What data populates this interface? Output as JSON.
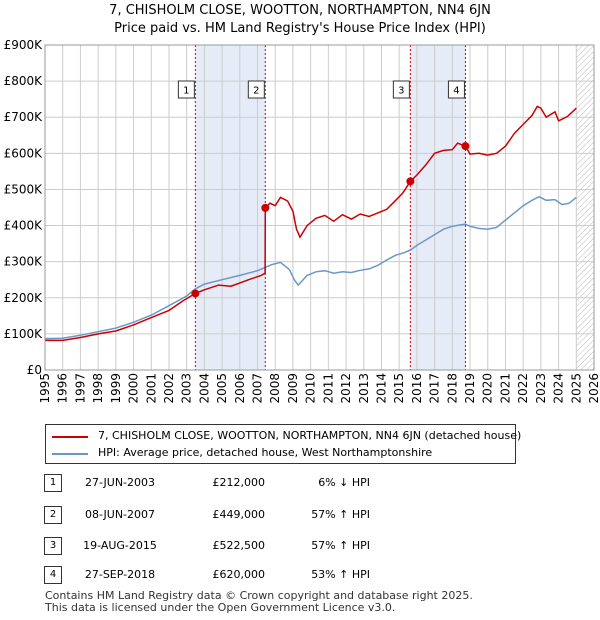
{
  "title_line1": "7, CHISHOLM CLOSE, WOOTTON, NORTHAMPTON, NN4 6JN",
  "title_line2": "Price paid vs. HM Land Registry's House Price Index (HPI)",
  "colors": {
    "property": "#cc0000",
    "hpi": "#6b97c8",
    "shade": "#e6ecf7",
    "grid": "#cccccc",
    "marker_line": "#cc0000"
  },
  "chart_data": {
    "type": "line",
    "x_range": [
      1995,
      2026
    ],
    "ylim": [
      0,
      900000
    ],
    "y_ticks": [
      {
        "value": 0,
        "label": "£0"
      },
      {
        "value": 100000,
        "label": "£100K"
      },
      {
        "value": 200000,
        "label": "£200K"
      },
      {
        "value": 300000,
        "label": "£300K"
      },
      {
        "value": 400000,
        "label": "£400K"
      },
      {
        "value": 500000,
        "label": "£500K"
      },
      {
        "value": 600000,
        "label": "£600K"
      },
      {
        "value": 700000,
        "label": "£700K"
      },
      {
        "value": 800000,
        "label": "£800K"
      },
      {
        "value": 900000,
        "label": "£900K"
      }
    ],
    "x_ticks": [
      "1995",
      "1996",
      "1997",
      "1998",
      "1999",
      "2000",
      "2001",
      "2002",
      "2003",
      "2004",
      "2005",
      "2006",
      "2007",
      "2008",
      "2009",
      "2010",
      "2011",
      "2012",
      "2013",
      "2014",
      "2015",
      "2016",
      "2017",
      "2018",
      "2019",
      "2020",
      "2021",
      "2022",
      "2023",
      "2024",
      "2025",
      "2026"
    ],
    "shaded_periods": [
      [
        2003.49,
        2007.44
      ],
      [
        2015.63,
        2018.74
      ]
    ],
    "future_hatch_from": 2025.0,
    "series": [
      {
        "name": "7, CHISHOLM CLOSE, WOOTTON, NORTHAMPTON, NN4 6JN (detached house)",
        "color": "#cc0000",
        "points": [
          [
            1995.0,
            82000
          ],
          [
            1996.0,
            82000
          ],
          [
            1997.0,
            90000
          ],
          [
            1998.0,
            100000
          ],
          [
            1999.0,
            108000
          ],
          [
            2000.0,
            125000
          ],
          [
            2001.0,
            145000
          ],
          [
            2002.0,
            165000
          ],
          [
            2002.8,
            192000
          ],
          [
            2003.49,
            212000
          ],
          [
            2004.0,
            222000
          ],
          [
            2004.8,
            235000
          ],
          [
            2005.5,
            232000
          ],
          [
            2006.5,
            250000
          ],
          [
            2007.2,
            262000
          ],
          [
            2007.43,
            268000
          ],
          [
            2007.44,
            449000
          ],
          [
            2007.7,
            462000
          ],
          [
            2008.0,
            455000
          ],
          [
            2008.3,
            478000
          ],
          [
            2008.7,
            468000
          ],
          [
            2009.0,
            440000
          ],
          [
            2009.2,
            390000
          ],
          [
            2009.4,
            368000
          ],
          [
            2009.8,
            400000
          ],
          [
            2010.3,
            420000
          ],
          [
            2010.8,
            428000
          ],
          [
            2011.3,
            412000
          ],
          [
            2011.8,
            430000
          ],
          [
            2012.3,
            418000
          ],
          [
            2012.8,
            432000
          ],
          [
            2013.3,
            425000
          ],
          [
            2013.8,
            435000
          ],
          [
            2014.3,
            445000
          ],
          [
            2014.8,
            470000
          ],
          [
            2015.2,
            490000
          ],
          [
            2015.63,
            522500
          ],
          [
            2016.0,
            540000
          ],
          [
            2016.5,
            568000
          ],
          [
            2017.0,
            600000
          ],
          [
            2017.5,
            608000
          ],
          [
            2018.0,
            610000
          ],
          [
            2018.3,
            628000
          ],
          [
            2018.74,
            620000
          ],
          [
            2019.0,
            598000
          ],
          [
            2019.5,
            600000
          ],
          [
            2020.0,
            595000
          ],
          [
            2020.5,
            600000
          ],
          [
            2021.0,
            620000
          ],
          [
            2021.5,
            655000
          ],
          [
            2022.0,
            680000
          ],
          [
            2022.5,
            705000
          ],
          [
            2022.8,
            730000
          ],
          [
            2023.0,
            725000
          ],
          [
            2023.3,
            700000
          ],
          [
            2023.8,
            715000
          ],
          [
            2024.0,
            690000
          ],
          [
            2024.5,
            702000
          ],
          [
            2025.0,
            725000
          ]
        ]
      },
      {
        "name": "HPI: Average price, detached house, West Northamptonshire",
        "color": "#6b97c8",
        "points": [
          [
            1995.0,
            87000
          ],
          [
            1996.0,
            88000
          ],
          [
            1997.0,
            96000
          ],
          [
            1998.0,
            106000
          ],
          [
            1999.0,
            116000
          ],
          [
            2000.0,
            132000
          ],
          [
            2001.0,
            152000
          ],
          [
            2002.0,
            178000
          ],
          [
            2003.0,
            205000
          ],
          [
            2003.49,
            225000
          ],
          [
            2004.0,
            238000
          ],
          [
            2005.0,
            250000
          ],
          [
            2006.0,
            262000
          ],
          [
            2007.0,
            275000
          ],
          [
            2007.44,
            284000
          ],
          [
            2007.8,
            292000
          ],
          [
            2008.3,
            298000
          ],
          [
            2008.8,
            278000
          ],
          [
            2009.1,
            248000
          ],
          [
            2009.3,
            235000
          ],
          [
            2009.8,
            262000
          ],
          [
            2010.3,
            272000
          ],
          [
            2010.8,
            275000
          ],
          [
            2011.3,
            268000
          ],
          [
            2011.8,
            272000
          ],
          [
            2012.3,
            270000
          ],
          [
            2012.8,
            276000
          ],
          [
            2013.3,
            280000
          ],
          [
            2013.8,
            290000
          ],
          [
            2014.3,
            305000
          ],
          [
            2014.8,
            318000
          ],
          [
            2015.3,
            325000
          ],
          [
            2015.63,
            332000
          ],
          [
            2016.0,
            345000
          ],
          [
            2016.5,
            360000
          ],
          [
            2017.0,
            375000
          ],
          [
            2017.5,
            390000
          ],
          [
            2018.0,
            398000
          ],
          [
            2018.5,
            402000
          ],
          [
            2018.74,
            404000
          ],
          [
            2019.0,
            398000
          ],
          [
            2019.5,
            392000
          ],
          [
            2020.0,
            390000
          ],
          [
            2020.5,
            395000
          ],
          [
            2021.0,
            415000
          ],
          [
            2021.5,
            435000
          ],
          [
            2022.0,
            455000
          ],
          [
            2022.5,
            470000
          ],
          [
            2022.9,
            480000
          ],
          [
            2023.3,
            470000
          ],
          [
            2023.8,
            472000
          ],
          [
            2024.2,
            458000
          ],
          [
            2024.6,
            462000
          ],
          [
            2025.0,
            478000
          ]
        ]
      }
    ],
    "sales": [
      {
        "id": "1",
        "x": 2003.49,
        "y": 212000
      },
      {
        "id": "2",
        "x": 2007.44,
        "y": 449000
      },
      {
        "id": "3",
        "x": 2015.63,
        "y": 522500
      },
      {
        "id": "4",
        "x": 2018.74,
        "y": 620000
      }
    ]
  },
  "legend": {
    "property_label": "7, CHISHOLM CLOSE, WOOTTON, NORTHAMPTON, NN4 6JN (detached house)",
    "hpi_label": "HPI: Average price, detached house, West Northamptonshire"
  },
  "transactions": [
    {
      "id": "1",
      "date": "27-JUN-2003",
      "price": "£212,000",
      "hpi": "6% ↓ HPI"
    },
    {
      "id": "2",
      "date": "08-JUN-2007",
      "price": "£449,000",
      "hpi": "57% ↑ HPI"
    },
    {
      "id": "3",
      "date": "19-AUG-2015",
      "price": "£522,500",
      "hpi": "57% ↑ HPI"
    },
    {
      "id": "4",
      "date": "27-SEP-2018",
      "price": "£620,000",
      "hpi": "53% ↑ HPI"
    }
  ],
  "footer_line1": "Contains HM Land Registry data © Crown copyright and database right 2025.",
  "footer_line2": "This data is licensed under the Open Government Licence v3.0."
}
